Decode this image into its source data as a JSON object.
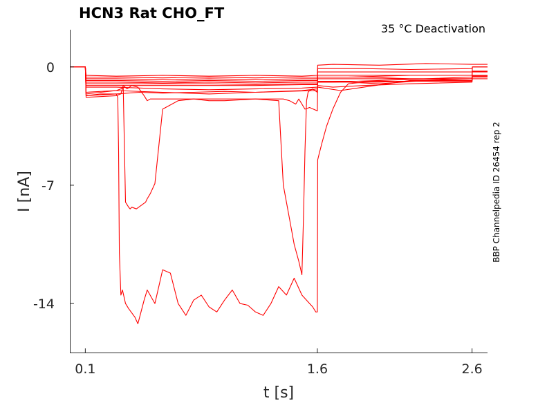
{
  "chart_data": {
    "type": "line",
    "title": "HCN3  Rat  CHO_FT",
    "annotation": "35 °C  Deactivation",
    "side_label": "BBP Channelpedia ID 26454 rep 2",
    "xlabel": "t [s]",
    "ylabel": "I [nA]",
    "xlim": [
      0.0,
      2.7
    ],
    "ylim": [
      -16.9,
      2.2
    ],
    "xticks": [
      0.1,
      1.6,
      2.6
    ],
    "xtick_labels": [
      "0.1",
      "1.6",
      "2.6"
    ],
    "yticks": [
      0,
      -7,
      -14
    ],
    "ytick_labels": [
      "0",
      "-7",
      "-14"
    ],
    "grid": false,
    "color": "#ff0000",
    "series": [
      {
        "x": [
          0.0,
          0.09,
          0.1,
          0.105,
          0.3,
          0.6,
          0.9,
          1.2,
          1.5,
          1.6,
          1.602,
          1.7,
          2.0,
          2.3,
          2.6,
          2.602,
          2.7
        ],
        "y": [
          0.0,
          0.0,
          0.0,
          -0.5,
          -0.55,
          -0.5,
          -0.55,
          -0.5,
          -0.55,
          -0.5,
          0.1,
          0.15,
          0.1,
          0.2,
          0.15,
          0.15,
          0.15
        ]
      },
      {
        "x": [
          0.0,
          0.1,
          0.105,
          0.3,
          0.6,
          0.9,
          1.2,
          1.5,
          1.6,
          1.602,
          1.9,
          2.2,
          2.6,
          2.602,
          2.7
        ],
        "y": [
          0.0,
          0.0,
          -0.6,
          -0.6,
          -0.65,
          -0.6,
          -0.65,
          -0.6,
          -0.6,
          -0.1,
          -0.1,
          -0.15,
          -0.1,
          0.0,
          0.0
        ]
      },
      {
        "x": [
          0.0,
          0.1,
          0.105,
          0.3,
          0.6,
          0.9,
          1.2,
          1.5,
          1.6,
          1.602,
          1.9,
          2.2,
          2.6,
          2.602,
          2.7
        ],
        "y": [
          0.0,
          0.0,
          -0.7,
          -0.7,
          -0.75,
          -0.7,
          -0.75,
          -0.7,
          -0.7,
          -0.3,
          -0.3,
          -0.3,
          -0.3,
          -0.25,
          -0.25
        ]
      },
      {
        "x": [
          0.0,
          0.1,
          0.105,
          0.3,
          0.6,
          0.9,
          1.2,
          1.5,
          1.6,
          1.602,
          1.9,
          2.2,
          2.6,
          2.602,
          2.7
        ],
        "y": [
          0.0,
          0.0,
          -0.8,
          -0.8,
          -0.85,
          -0.8,
          -0.85,
          -0.8,
          -0.8,
          -0.5,
          -0.5,
          -0.5,
          -0.5,
          -0.5,
          -0.5
        ]
      },
      {
        "x": [
          0.0,
          0.1,
          0.105,
          0.3,
          0.6,
          0.9,
          1.2,
          1.5,
          1.6,
          1.602,
          1.9,
          2.2,
          2.6,
          2.602,
          2.7
        ],
        "y": [
          0.0,
          0.0,
          -0.9,
          -0.9,
          -0.95,
          -0.9,
          -0.95,
          -0.9,
          -0.9,
          -0.7,
          -0.7,
          -0.7,
          -0.7,
          -0.55,
          -0.55
        ]
      },
      {
        "x": [
          0.0,
          0.1,
          0.105,
          0.3,
          0.6,
          0.9,
          1.2,
          1.5,
          1.6,
          1.602,
          1.9,
          2.2,
          2.6,
          2.602,
          2.7
        ],
        "y": [
          0.0,
          0.0,
          -1.0,
          -1.0,
          -1.0,
          -1.0,
          -1.05,
          -1.0,
          -1.0,
          -0.85,
          -0.85,
          -0.85,
          -0.85,
          -0.55,
          -0.55
        ]
      },
      {
        "x": [
          0.0,
          0.1,
          0.105,
          0.3,
          0.6,
          0.9,
          1.2,
          1.5,
          1.6,
          1.602,
          1.9,
          2.2,
          2.6,
          2.602,
          2.7
        ],
        "y": [
          0.0,
          0.0,
          -1.1,
          -1.1,
          -1.1,
          -1.1,
          -1.1,
          -1.05,
          -1.05,
          -0.6,
          -0.6,
          -0.7,
          -0.7,
          -0.6,
          -0.6
        ]
      },
      {
        "x": [
          0.0,
          0.1,
          0.105,
          0.3,
          0.6,
          0.9,
          1.2,
          1.5,
          1.6,
          1.602,
          1.8,
          2.0,
          2.3,
          2.6,
          2.602,
          2.7
        ],
        "y": [
          0.0,
          0.0,
          -1.2,
          -1.2,
          -1.3,
          -1.35,
          -1.3,
          -1.25,
          -1.2,
          -0.9,
          -0.9,
          -1.0,
          -0.8,
          -0.8,
          0.0,
          0.0
        ]
      },
      {
        "x": [
          0.0,
          0.1,
          0.105,
          0.3,
          0.6,
          0.9,
          1.2,
          1.5,
          1.6,
          1.602,
          1.75,
          1.9,
          2.2,
          2.6,
          2.602,
          2.7
        ],
        "y": [
          0.0,
          0.0,
          -1.5,
          -1.4,
          -1.5,
          -1.6,
          -1.5,
          -1.4,
          -1.3,
          -1.2,
          -1.4,
          -1.2,
          -0.8,
          -0.7,
          -0.5,
          -0.5
        ]
      },
      {
        "x": [
          0.0,
          0.1,
          0.105,
          0.2,
          0.3,
          0.45,
          0.6,
          0.8,
          1.0,
          1.2,
          1.4,
          1.6,
          1.602,
          1.7,
          1.9,
          2.2,
          2.6,
          2.602,
          2.7
        ],
        "y": [
          0.0,
          0.0,
          -1.7,
          -1.6,
          -1.6,
          -1.5,
          -1.55,
          -1.5,
          -1.45,
          -1.5,
          -1.45,
          -1.4,
          -1.1,
          -1.2,
          -1.1,
          -1.0,
          -0.9,
          -0.6,
          -0.6
        ]
      },
      {
        "x": [
          0.0,
          0.1,
          0.105,
          0.3,
          0.33,
          0.345,
          0.37,
          0.4,
          0.44,
          0.48,
          0.5,
          0.52,
          0.55,
          0.6,
          0.65,
          0.7,
          0.75,
          0.8,
          0.9,
          1.0,
          1.1,
          1.2,
          1.3,
          1.38,
          1.42,
          1.46,
          1.48,
          1.52,
          1.55,
          1.6,
          1.602,
          1.7,
          2.0,
          2.3,
          2.6,
          2.602,
          2.7
        ],
        "y": [
          0.0,
          0.0,
          -1.8,
          -1.7,
          -1.6,
          -1.1,
          -1.3,
          -1.1,
          -1.2,
          -1.7,
          -2.0,
          -1.9,
          -1.9,
          -1.9,
          -1.9,
          -1.9,
          -1.9,
          -1.9,
          -2.0,
          -2.0,
          -1.95,
          -1.9,
          -1.9,
          -1.9,
          -2.0,
          -2.2,
          -1.9,
          -2.5,
          -2.4,
          -2.6,
          -0.9,
          -0.9,
          -0.8,
          -0.7,
          -0.6,
          -0.6,
          -0.6
        ]
      },
      {
        "x": [
          0.0,
          0.1,
          0.105,
          0.3,
          0.33,
          0.345,
          0.36,
          0.38,
          0.39,
          0.4,
          0.43,
          0.46,
          0.49,
          0.5,
          0.52,
          0.55,
          0.6,
          0.7,
          0.8,
          1.0,
          1.2,
          1.35,
          1.38,
          1.4,
          1.42,
          1.45,
          1.48,
          1.5,
          1.51,
          1.52,
          1.53,
          1.54,
          1.55,
          1.57,
          1.6,
          1.602,
          1.8,
          2.2,
          2.6,
          2.602,
          2.7
        ],
        "y": [
          0.0,
          0.0,
          -1.6,
          -1.4,
          -1.3,
          -1.2,
          -8.0,
          -8.3,
          -8.4,
          -8.3,
          -8.4,
          -8.2,
          -8.0,
          -7.8,
          -7.5,
          -6.9,
          -2.5,
          -2.0,
          -1.9,
          -1.9,
          -1.9,
          -2.0,
          -7.0,
          -8.0,
          -9.0,
          -10.5,
          -11.5,
          -12.3,
          -9.0,
          -5.0,
          -2.0,
          -1.5,
          -1.4,
          -1.3,
          -1.5,
          -0.6,
          -0.6,
          -0.5,
          -0.5,
          -0.3,
          -0.3
        ]
      },
      {
        "x": [
          0.0,
          0.1,
          0.105,
          0.3,
          0.31,
          0.315,
          0.32,
          0.33,
          0.34,
          0.36,
          0.38,
          0.42,
          0.44,
          0.46,
          0.48,
          0.5,
          0.55,
          0.6,
          0.65,
          0.7,
          0.75,
          0.8,
          0.85,
          0.9,
          0.95,
          1.0,
          1.05,
          1.1,
          1.15,
          1.2,
          1.25,
          1.3,
          1.35,
          1.4,
          1.45,
          1.5,
          1.55,
          1.57,
          1.59,
          1.6,
          1.602,
          1.61,
          1.63,
          1.66,
          1.7,
          1.75,
          1.8,
          1.9,
          2.0,
          2.3,
          2.6,
          2.602,
          2.7
        ],
        "y": [
          0.0,
          0.0,
          -1.7,
          -1.6,
          -1.8,
          -5.0,
          -11.0,
          -13.5,
          -13.2,
          -14.0,
          -14.3,
          -14.8,
          -15.2,
          -14.5,
          -13.8,
          -13.2,
          -14.0,
          -12.0,
          -12.2,
          -14.0,
          -14.7,
          -13.8,
          -13.5,
          -14.2,
          -14.5,
          -13.8,
          -13.2,
          -14.0,
          -14.1,
          -14.5,
          -14.7,
          -14.0,
          -13.0,
          -13.5,
          -12.5,
          -13.5,
          -14.0,
          -14.2,
          -14.5,
          -14.5,
          -5.5,
          -5.2,
          -4.5,
          -3.5,
          -2.5,
          -1.5,
          -1.0,
          -0.9,
          -0.9,
          -0.8,
          -0.7,
          -0.7,
          -0.7
        ]
      }
    ]
  }
}
